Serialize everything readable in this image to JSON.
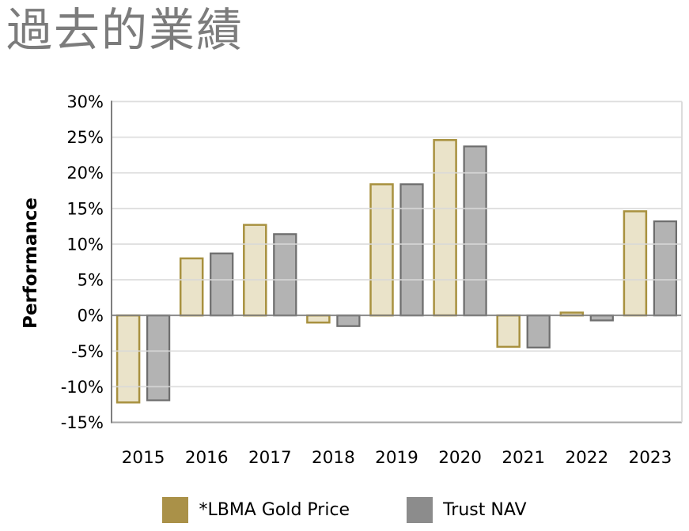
{
  "chart_data": {
    "type": "bar",
    "title": "過去的業績",
    "ylabel": "Performance",
    "categories": [
      "2015",
      "2016",
      "2017",
      "2018",
      "2019",
      "2020",
      "2021",
      "2022",
      "2023"
    ],
    "series": [
      {
        "name": "*LBMA Gold Price",
        "values": [
          -12.2,
          8.0,
          12.7,
          -1.0,
          18.4,
          24.6,
          -4.4,
          0.4,
          14.6
        ],
        "fill": "#EAE3C9",
        "border": "#A8913F",
        "legend_swatch": "#AA9148"
      },
      {
        "name": "Trust NAV",
        "values": [
          -11.9,
          8.7,
          11.4,
          -1.5,
          18.4,
          23.7,
          -4.5,
          -0.7,
          13.2
        ],
        "fill": "#B3B3B3",
        "border": "#6E6E6E",
        "legend_swatch": "#8C8C8C"
      }
    ],
    "ylim": [
      -15,
      30
    ],
    "ytick_step": 5,
    "ytick_labels": [
      "30%",
      "25%",
      "20%",
      "15%",
      "10%",
      "5%",
      "0%",
      "-5%",
      "-10%",
      "-15%"
    ],
    "grid": true,
    "legend_position": "bottom",
    "colors": {
      "gridline": "#D9D9D9",
      "axis": "#7F7F7F",
      "plot_bottom": "#A6A6A6",
      "tick_text": "#000000",
      "title_text": "#7C7C7C"
    }
  }
}
